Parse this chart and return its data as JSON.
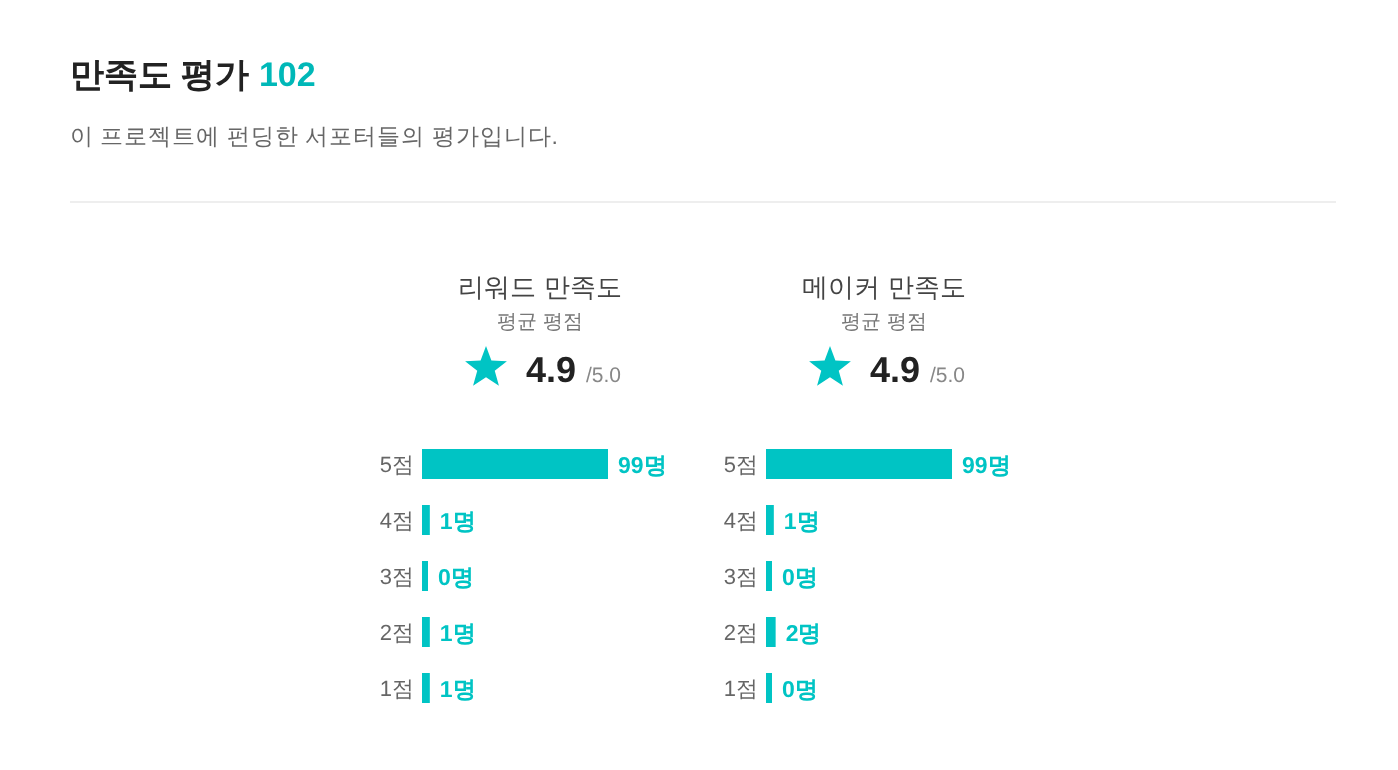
{
  "chart_data": [
    {
      "type": "other",
      "title": "만족도 평가 102",
      "subtitle": "이 프로젝트에 펀딩한 서포터들의 평가입니다."
    },
    {
      "type": "bar",
      "orientation": "horizontal",
      "title": "리워드 만족도",
      "subtitle": "평균 평점",
      "annotations": [
        "4.9",
        "/5.0"
      ],
      "categories": [
        "5점",
        "4점",
        "3점",
        "2점",
        "1점"
      ],
      "values": [
        99,
        1,
        0,
        1,
        1
      ],
      "value_labels": [
        "99명",
        "1명",
        "0명",
        "1명",
        "1명"
      ],
      "color": "#00c4c4"
    },
    {
      "type": "bar",
      "orientation": "horizontal",
      "title": "메이커 만족도",
      "subtitle": "평균 평점",
      "annotations": [
        "4.9",
        "/5.0"
      ],
      "categories": [
        "5점",
        "4점",
        "3점",
        "2점",
        "1점"
      ],
      "values": [
        99,
        1,
        0,
        2,
        0
      ],
      "value_labels": [
        "99명",
        "1명",
        "0명",
        "2명",
        "0명"
      ],
      "color": "#00c4c4"
    }
  ]
}
